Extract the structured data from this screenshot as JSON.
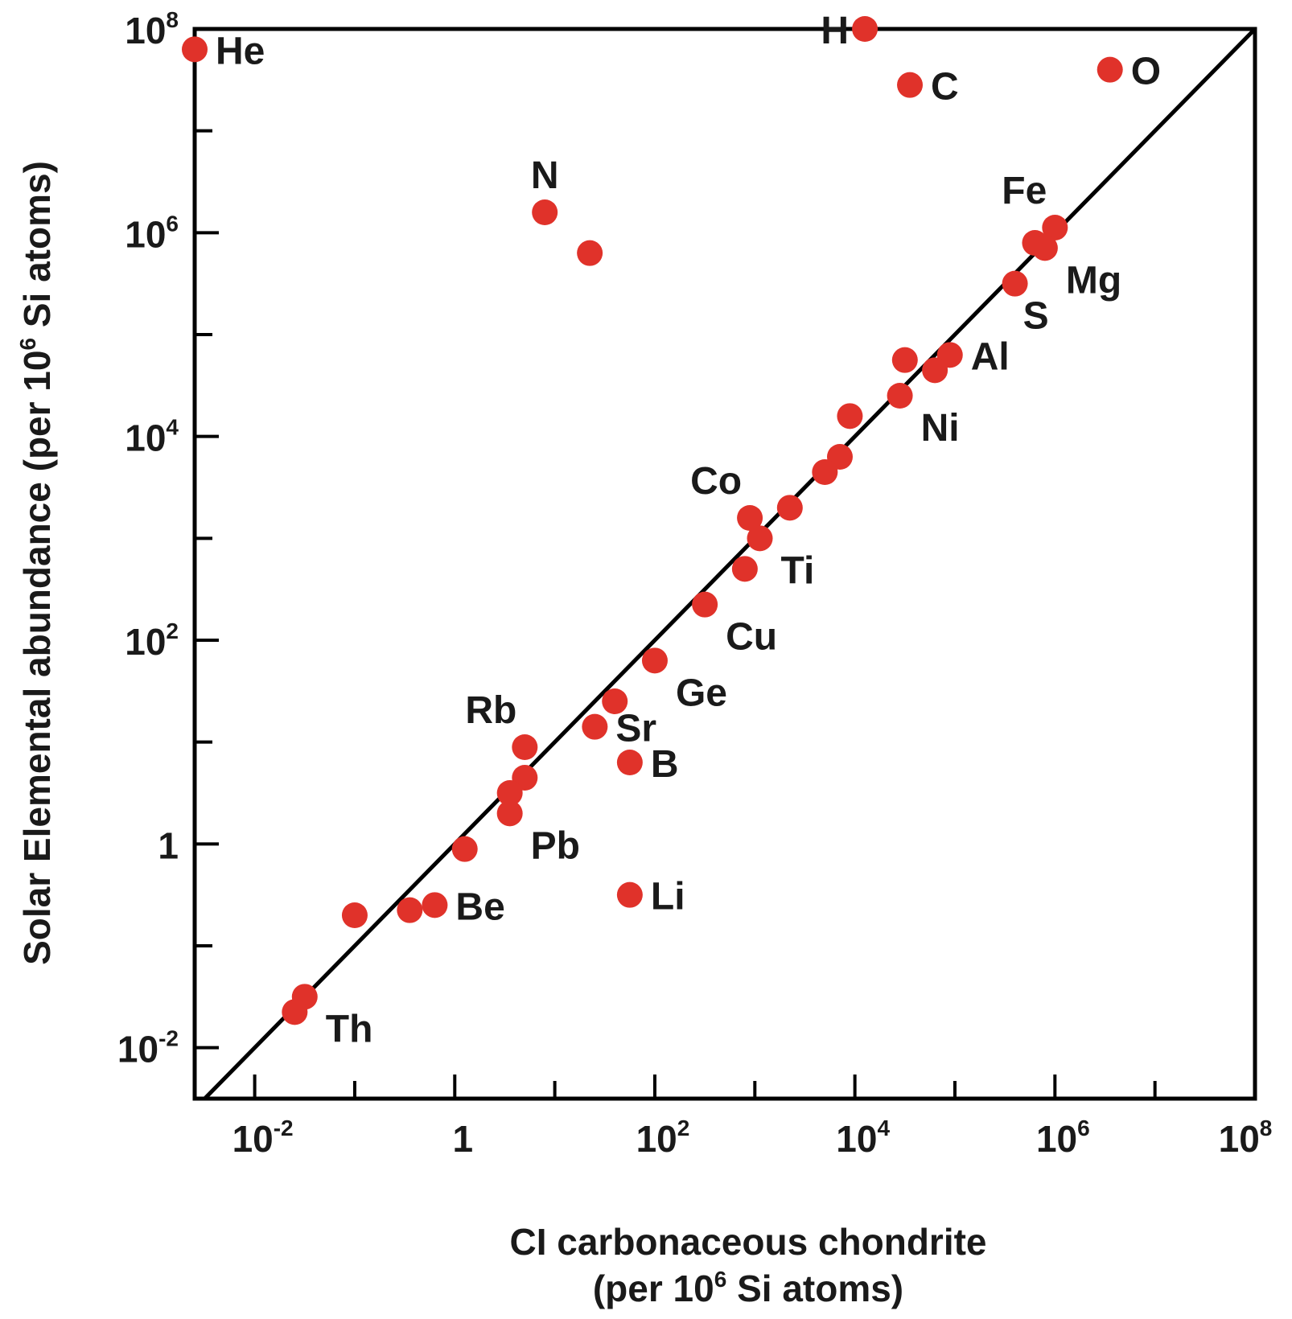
{
  "chart_data": {
    "type": "scatter",
    "title": "",
    "xlabel_line1": "CI carbonaceous chondrite",
    "xlabel_line2_pre": "(per 10",
    "xlabel_line2_sup": "6",
    "xlabel_line2_post": " Si atoms)",
    "ylabel_pre": "Solar Elemental abundance (per 10",
    "ylabel_sup": "6",
    "ylabel_post": " Si atoms)",
    "xscale": "log10",
    "yscale": "log10",
    "xlim_log10": [
      -2.6,
      8
    ],
    "ylim_log10": [
      -2.5,
      8
    ],
    "x_ticks": [
      {
        "base": "10",
        "exp": "-2"
      },
      {
        "base": "1",
        "exp": ""
      },
      {
        "base": "10",
        "exp": "2"
      },
      {
        "base": "10",
        "exp": "4"
      },
      {
        "base": "10",
        "exp": "6"
      },
      {
        "base": "10",
        "exp": "8"
      }
    ],
    "y_ticks": [
      {
        "base": "10",
        "exp": "-2"
      },
      {
        "base": "1",
        "exp": ""
      },
      {
        "base": "10",
        "exp": "2"
      },
      {
        "base": "10",
        "exp": "4"
      },
      {
        "base": "10",
        "exp": "6"
      },
      {
        "base": "10",
        "exp": "8"
      }
    ],
    "reference_line": "1:1 (y = x)",
    "point_color": "#e0322a",
    "points": [
      {
        "label": "H",
        "x": 4.1,
        "y": 8.0,
        "anchor": "left"
      },
      {
        "label": "He",
        "x": -2.6,
        "y": 7.8,
        "anchor": "right"
      },
      {
        "label": "C",
        "x": 4.55,
        "y": 7.45,
        "anchor": "right"
      },
      {
        "label": "O",
        "x": 6.55,
        "y": 7.6,
        "anchor": "right"
      },
      {
        "label": "N",
        "x": 0.9,
        "y": 6.2,
        "anchor": "above"
      },
      {
        "label": "",
        "x": 1.35,
        "y": 5.8
      },
      {
        "label": "Fe",
        "x": 6.0,
        "y": 6.05,
        "anchor": "above-left"
      },
      {
        "label": "",
        "x": 5.8,
        "y": 5.9
      },
      {
        "label": "Mg",
        "x": 5.9,
        "y": 5.85,
        "anchor": "below-right"
      },
      {
        "label": "S",
        "x": 5.6,
        "y": 5.5,
        "anchor": "below"
      },
      {
        "label": "Al",
        "x": 4.95,
        "y": 4.8,
        "anchor": "right"
      },
      {
        "label": "",
        "x": 4.5,
        "y": 4.75
      },
      {
        "label": "",
        "x": 4.8,
        "y": 4.65
      },
      {
        "label": "Ni",
        "x": 4.45,
        "y": 4.4,
        "anchor": "below-right"
      },
      {
        "label": "",
        "x": 3.95,
        "y": 4.2
      },
      {
        "label": "",
        "x": 3.85,
        "y": 3.8
      },
      {
        "label": "",
        "x": 3.7,
        "y": 3.65
      },
      {
        "label": "",
        "x": 3.35,
        "y": 3.3
      },
      {
        "label": "Co",
        "x": 2.95,
        "y": 3.2,
        "anchor": "above-left"
      },
      {
        "label": "Ti",
        "x": 3.05,
        "y": 3.0,
        "anchor": "below-right"
      },
      {
        "label": "",
        "x": 2.9,
        "y": 2.7
      },
      {
        "label": "Cu",
        "x": 2.5,
        "y": 2.35,
        "anchor": "below-right"
      },
      {
        "label": "Ge",
        "x": 2.0,
        "y": 1.8,
        "anchor": "below-right"
      },
      {
        "label": "",
        "x": 1.6,
        "y": 1.4
      },
      {
        "label": "Sr",
        "x": 1.4,
        "y": 1.15,
        "anchor": "right"
      },
      {
        "label": "B",
        "x": 1.75,
        "y": 0.8,
        "anchor": "right"
      },
      {
        "label": "Rb",
        "x": 0.7,
        "y": 0.95,
        "anchor": "above-left"
      },
      {
        "label": "",
        "x": 0.7,
        "y": 0.65
      },
      {
        "label": "",
        "x": 0.55,
        "y": 0.5
      },
      {
        "label": "Pb",
        "x": 0.55,
        "y": 0.3,
        "anchor": "below-right"
      },
      {
        "label": "",
        "x": 0.1,
        "y": -0.05
      },
      {
        "label": "Li",
        "x": 1.75,
        "y": -0.5,
        "anchor": "right"
      },
      {
        "label": "Be",
        "x": -0.2,
        "y": -0.6,
        "anchor": "right"
      },
      {
        "label": "",
        "x": -0.45,
        "y": -0.65
      },
      {
        "label": "",
        "x": -1.0,
        "y": -0.7
      },
      {
        "label": "Th",
        "x": -1.5,
        "y": -1.5,
        "anchor": "below-right"
      },
      {
        "label": "",
        "x": -1.6,
        "y": -1.65
      }
    ]
  }
}
